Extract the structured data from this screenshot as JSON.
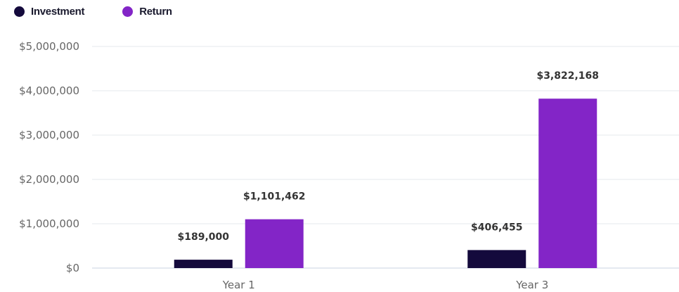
{
  "legend": [
    {
      "name": "Investment",
      "color": "#140a3c"
    },
    {
      "name": "Return",
      "color": "#8325c7"
    }
  ],
  "chart_data": {
    "type": "bar",
    "categories": [
      "Year 1",
      "Year 3"
    ],
    "series": [
      {
        "name": "Investment",
        "color": "#140a3c",
        "values": [
          189000,
          406455
        ],
        "labels": [
          "$189,000",
          "$406,455"
        ]
      },
      {
        "name": "Return",
        "color": "#8325c7",
        "values": [
          1101462,
          3822168
        ],
        "labels": [
          "$1,101,462",
          "$3,822,168"
        ]
      }
    ],
    "ylim": [
      0,
      5000000
    ],
    "yticks": [
      0,
      1000000,
      2000000,
      3000000,
      4000000,
      5000000
    ],
    "ytick_labels": [
      "$0",
      "$1,000,000",
      "$2,000,000",
      "$3,000,000",
      "$4,000,000",
      "$5,000,000"
    ],
    "grid": true,
    "legend_position": "top-left"
  }
}
